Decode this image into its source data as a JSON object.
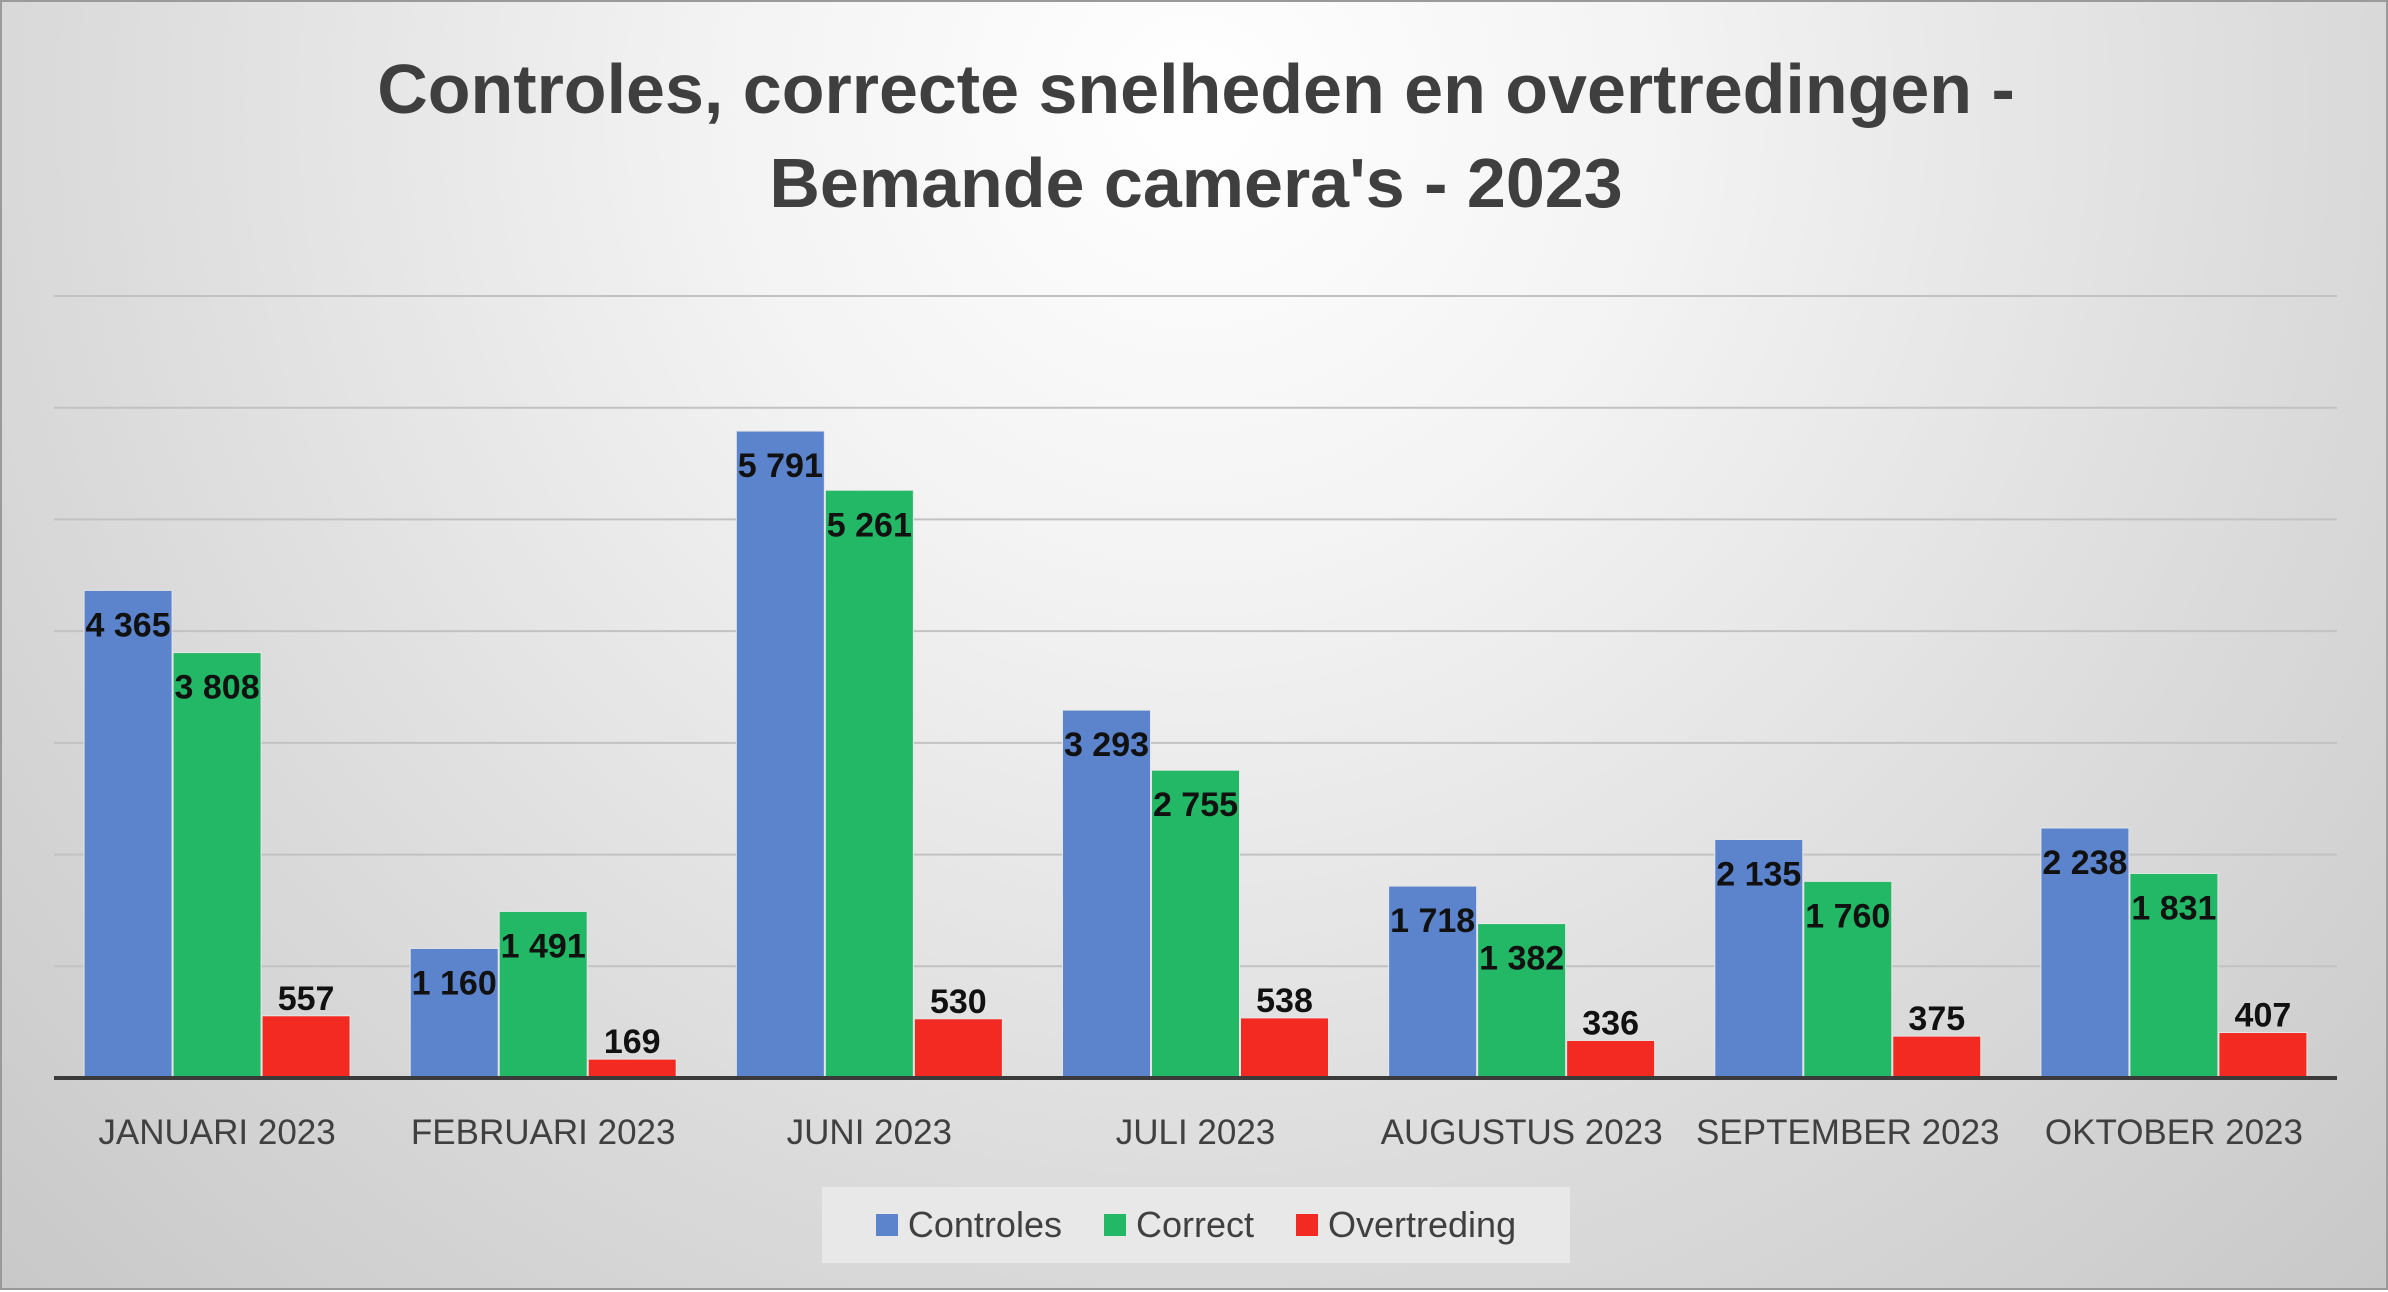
{
  "chart_data": {
    "type": "bar",
    "title_lines": [
      "Controles, correcte snelheden en overtredingen -",
      "Bemande camera's - 2023"
    ],
    "categories": [
      "JANUARI 2023",
      "FEBRUARI 2023",
      "JUNI 2023",
      "JULI 2023",
      "AUGUSTUS 2023",
      "SEPTEMBER 2023",
      "OKTOBER 2023"
    ],
    "series": [
      {
        "name": "Controles",
        "color": "#5b84cc",
        "values": [
          4365,
          1160,
          5791,
          3293,
          1718,
          2135,
          2238
        ],
        "labels": [
          "4 365",
          "1 160",
          "5 791",
          "3 293",
          "1 718",
          "2 135",
          "2 238"
        ]
      },
      {
        "name": "Correct",
        "color": "#22b865",
        "values": [
          3808,
          1491,
          5261,
          2755,
          1382,
          1760,
          1831
        ],
        "labels": [
          "3 808",
          "1 491",
          "5 261",
          "2 755",
          "1 382",
          "1 760",
          "1 831"
        ]
      },
      {
        "name": "Overtreding",
        "color": "#f22a22",
        "values": [
          557,
          169,
          530,
          538,
          336,
          375,
          407
        ],
        "labels": [
          "557",
          "169",
          "530",
          "538",
          "336",
          "375",
          "407"
        ]
      }
    ],
    "ylim": [
      0,
      7000
    ],
    "ygrid_step": 1000,
    "grid": true,
    "legend_position": "bottom"
  }
}
